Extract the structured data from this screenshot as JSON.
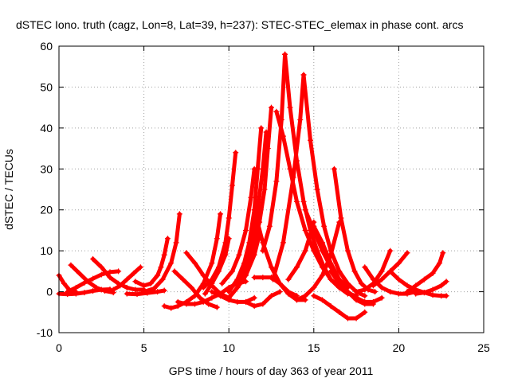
{
  "chart_data": {
    "type": "scatter",
    "title": "dSTEC Iono. truth (cagz, Lon=8, Lat=39, h=237): STEC-STEC_elemax in phase cont. arcs",
    "xlabel": "GPS time / hours of day 363 of year 2011",
    "ylabel": "dSTEC  / TECUs",
    "xlim": [
      0,
      25
    ],
    "ylim": [
      -10,
      60
    ],
    "xticks": [
      0,
      5,
      10,
      15,
      20,
      25
    ],
    "yticks": [
      -10,
      0,
      10,
      20,
      30,
      40,
      50,
      60
    ],
    "grid": true,
    "legend": "none",
    "marker": "plus",
    "color": "#ff0000",
    "series": [
      {
        "x": [
          0.0,
          0.3,
          0.6,
          1.0
        ],
        "y": [
          4,
          2,
          0.5,
          0
        ]
      },
      {
        "x": [
          0.0,
          0.5,
          1.0,
          1.5,
          2.0,
          2.5,
          3.0
        ],
        "y": [
          -0.5,
          -0.6,
          -0.5,
          -0.2,
          0.2,
          0.5,
          0.6
        ]
      },
      {
        "x": [
          0.7,
          1.2,
          1.7,
          2.2,
          2.7,
          3.2
        ],
        "y": [
          6.5,
          4.5,
          2.5,
          1,
          0.2,
          -0.2
        ]
      },
      {
        "x": [
          0.5,
          1.0,
          1.5,
          2.0,
          2.5,
          3.0,
          3.5
        ],
        "y": [
          0,
          1,
          2.2,
          3.2,
          4.2,
          4.8,
          5
        ]
      },
      {
        "x": [
          2.0,
          2.5,
          3.0,
          3.5,
          4.0,
          4.5,
          5.0
        ],
        "y": [
          8,
          6,
          3.5,
          2,
          1,
          0.5,
          0.5
        ]
      },
      {
        "x": [
          3.2,
          3.6,
          4.0,
          4.4,
          4.8
        ],
        "y": [
          0.5,
          1.5,
          3,
          4.5,
          6
        ]
      },
      {
        "x": [
          4.0,
          4.6,
          5.2,
          5.8,
          6.2
        ],
        "y": [
          -0.5,
          -0.6,
          -0.3,
          0,
          0.3
        ]
      },
      {
        "x": [
          4.5,
          5.0,
          5.4,
          5.8,
          6.0,
          6.2,
          6.4
        ],
        "y": [
          2.5,
          1.5,
          2,
          4,
          6,
          9,
          13
        ]
      },
      {
        "x": [
          5.0,
          5.6,
          6.1,
          6.6,
          6.9,
          7.1
        ],
        "y": [
          0,
          0.8,
          3,
          7,
          12,
          19
        ]
      },
      {
        "x": [
          6.2,
          6.6,
          7.0,
          7.5,
          8.0,
          8.5,
          9.0,
          9.3,
          9.5
        ],
        "y": [
          -3.5,
          -4,
          -3.5,
          -2.5,
          -1,
          2,
          7,
          13,
          19
        ]
      },
      {
        "x": [
          6.8,
          7.3,
          7.8,
          8.3,
          8.8,
          9.3
        ],
        "y": [
          5,
          3,
          1,
          -1.5,
          -3,
          -3.8
        ]
      },
      {
        "x": [
          7.5,
          8.0,
          8.5,
          9.0,
          9.5,
          10.0
        ],
        "y": [
          9.5,
          7,
          4,
          1.5,
          -0.5,
          -1.5
        ]
      },
      {
        "x": [
          7.0,
          7.5,
          8.0,
          8.5,
          9.0,
          9.5,
          10.0,
          10.5,
          11.0
        ],
        "y": [
          -2.5,
          -3,
          -3,
          -2.5,
          -1.5,
          -0.5,
          1,
          2,
          2.5
        ]
      },
      {
        "x": [
          8.5,
          9.0,
          9.4,
          9.8,
          10.0,
          10.2,
          10.4
        ],
        "y": [
          1,
          3,
          6,
          12,
          18,
          26,
          34
        ]
      },
      {
        "x": [
          9.0,
          9.5,
          10.0,
          10.5,
          11.0,
          11.5
        ],
        "y": [
          0,
          -1,
          -2,
          -2.5,
          -2.5,
          -1.5
        ]
      },
      {
        "x": [
          8.6,
          9.0,
          9.4,
          9.8,
          10.0
        ],
        "y": [
          -0.5,
          2,
          5,
          9,
          13
        ]
      },
      {
        "x": [
          9.6,
          10.2,
          10.6,
          11.0,
          11.3,
          11.5
        ],
        "y": [
          2,
          5,
          9,
          15,
          23,
          30
        ]
      },
      {
        "x": [
          10.0,
          10.5,
          10.9,
          11.2,
          11.5,
          11.7,
          11.9
        ],
        "y": [
          0,
          3,
          7,
          12,
          20,
          30,
          40
        ]
      },
      {
        "x": [
          10.5,
          11.0,
          11.4,
          11.7,
          12.0,
          12.2
        ],
        "y": [
          2,
          6,
          12,
          20,
          30,
          39
        ]
      },
      {
        "x": [
          11.0,
          11.4,
          11.8,
          12.1,
          12.3,
          12.5
        ],
        "y": [
          5,
          10,
          17,
          25,
          35,
          45
        ]
      },
      {
        "x": [
          11.5,
          12.0,
          12.5,
          13.0,
          13.5,
          14.0,
          14.5
        ],
        "y": [
          3.5,
          3.5,
          3.5,
          2,
          -0.5,
          -2,
          -2
        ]
      },
      {
        "x": [
          10.0,
          10.5,
          11.0,
          11.5,
          11.8
        ],
        "y": [
          -1.5,
          1,
          4,
          9,
          14
        ]
      },
      {
        "x": [
          11.5,
          12.0,
          12.5,
          13.0,
          13.5,
          14.0
        ],
        "y": [
          20,
          12,
          6,
          2,
          0,
          -1
        ]
      },
      {
        "x": [
          11.0,
          11.5,
          12.0,
          12.5,
          13.0
        ],
        "y": [
          -2.5,
          -3.5,
          -3,
          -1,
          0
        ]
      },
      {
        "x": [
          12.0,
          12.4,
          12.8,
          13.1,
          13.3
        ],
        "y": [
          10,
          16,
          27,
          42,
          58
        ]
      },
      {
        "x": [
          13.3,
          13.6,
          14.0,
          14.4,
          14.8,
          15.2,
          15.6,
          16.0,
          16.5,
          17.0
        ],
        "y": [
          58,
          45,
          32,
          22,
          15,
          10,
          6,
          3,
          1,
          0
        ]
      },
      {
        "x": [
          12.8,
          13.2,
          13.6,
          14.0,
          14.5,
          15.0,
          15.5,
          16.0,
          16.5,
          17.0,
          17.5
        ],
        "y": [
          44,
          38,
          30,
          22,
          15,
          10,
          6,
          3,
          1,
          -0.5,
          -1
        ]
      },
      {
        "x": [
          12.6,
          13.2,
          13.8,
          14.2,
          14.4
        ],
        "y": [
          3,
          12,
          28,
          42,
          53
        ]
      },
      {
        "x": [
          14.4,
          14.8,
          15.2,
          15.6,
          16.0,
          16.5,
          17.0,
          17.5,
          18.0
        ],
        "y": [
          53,
          37,
          25,
          16,
          10,
          5,
          2,
          0,
          -1
        ]
      },
      {
        "x": [
          13.5,
          14.0,
          14.5,
          14.8,
          15.0
        ],
        "y": [
          3,
          6,
          10,
          14,
          17
        ]
      },
      {
        "x": [
          14.5,
          15.0,
          15.5,
          16.0,
          16.5,
          17.0
        ],
        "y": [
          20,
          15,
          10,
          6,
          3,
          1
        ]
      },
      {
        "x": [
          14.0,
          14.5,
          15.0,
          15.5,
          16.0,
          16.5
        ],
        "y": [
          -2,
          -1,
          1,
          4,
          9,
          17
        ]
      },
      {
        "x": [
          15.0,
          15.5,
          16.0,
          16.5,
          17.0,
          17.5,
          18.0,
          18.5
        ],
        "y": [
          16,
          12,
          7,
          3,
          0,
          -2,
          -3,
          -3
        ]
      },
      {
        "x": [
          15.0,
          15.5,
          16.0,
          16.5,
          17.0,
          17.5,
          18.0
        ],
        "y": [
          -1,
          -2,
          -3.5,
          -5,
          -6.5,
          -6.5,
          -5
        ]
      },
      {
        "x": [
          16.2,
          16.6,
          17.0,
          17.4,
          17.8,
          18.2,
          18.6
        ],
        "y": [
          30,
          18,
          10,
          5,
          2,
          0.5,
          0
        ]
      },
      {
        "x": [
          16.0,
          16.5,
          17.0,
          17.5,
          18.0,
          18.5,
          19.0
        ],
        "y": [
          5,
          2,
          0,
          -1.5,
          -2.5,
          -2.5,
          -1.5
        ]
      },
      {
        "x": [
          17.5,
          18.0,
          18.5,
          19.0,
          19.5
        ],
        "y": [
          0,
          0.5,
          2,
          5,
          10
        ]
      },
      {
        "x": [
          18.0,
          18.5,
          19.0,
          19.5,
          20.0,
          20.5,
          21.0
        ],
        "y": [
          6,
          3,
          1,
          0,
          -0.5,
          -0.5,
          0
        ]
      },
      {
        "x": [
          18.5,
          19.0,
          19.5,
          20.0,
          20.5
        ],
        "y": [
          1.5,
          3,
          5,
          7,
          9.5
        ]
      },
      {
        "x": [
          19.5,
          20.0,
          20.5,
          21.0,
          21.5,
          22.0,
          22.5,
          22.8
        ],
        "y": [
          5,
          3,
          1.5,
          0.5,
          -0.2,
          -0.8,
          -1,
          -1
        ]
      },
      {
        "x": [
          20.5,
          21.0,
          21.5,
          22.0,
          22.4,
          22.6
        ],
        "y": [
          0,
          1.5,
          3,
          4.5,
          7,
          9.5
        ]
      },
      {
        "x": [
          21.0,
          21.5,
          22.0,
          22.5,
          22.8
        ],
        "y": [
          -0.5,
          -0.2,
          0.5,
          1.5,
          2.5
        ]
      }
    ]
  }
}
